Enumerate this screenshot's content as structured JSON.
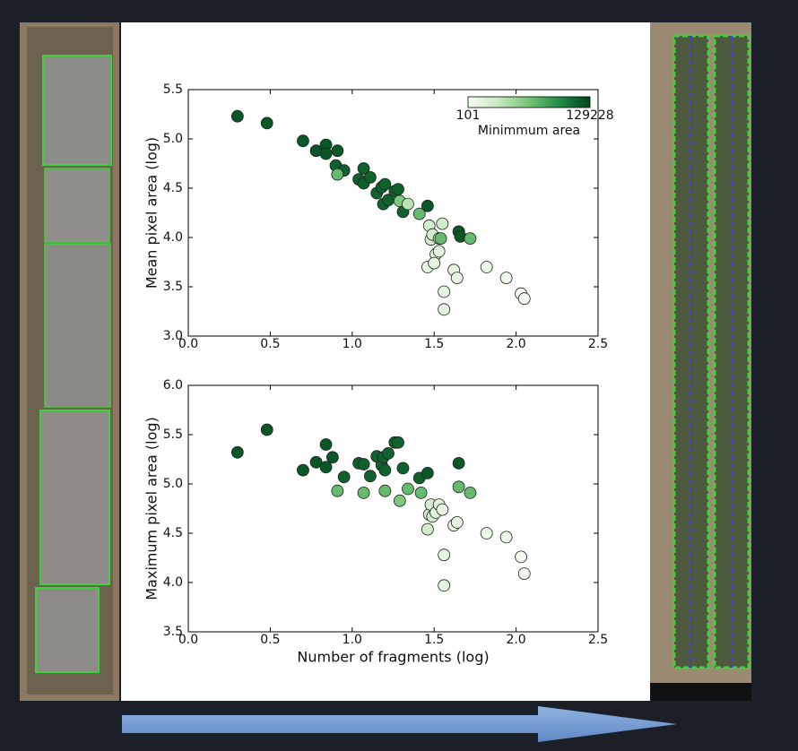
{
  "chart_data": [
    {
      "type": "scatter",
      "ylabel": "Mean pixel area (log)",
      "xlim": [
        0,
        2.5
      ],
      "ylim": [
        3.0,
        5.5
      ],
      "xticks": [
        {
          "value": 0,
          "label": "0.0"
        },
        0.5,
        {
          "value": 1,
          "label": "1.0"
        },
        1.5,
        {
          "value": 2,
          "label": "2.0"
        },
        2.5
      ],
      "yticks": [
        {
          "value": 3,
          "label": "3.0"
        },
        3.5,
        {
          "value": 4,
          "label": "4.0"
        },
        4.5,
        {
          "value": 5,
          "label": "5.0"
        },
        5.5
      ],
      "cmap": [
        "#f7fcf5",
        "#c7e9c0",
        "#74c476",
        "#238b45",
        "#00441b"
      ],
      "clog": true,
      "colorbar": {
        "label": "Minimmum area",
        "clim": [
          101,
          129228
        ]
      },
      "x": [
        0.3,
        0.48,
        0.7,
        0.78,
        0.84,
        0.84,
        0.91,
        0.9,
        0.95,
        0.91,
        1.04,
        1.07,
        1.07,
        1.11,
        1.15,
        1.18,
        1.2,
        1.19,
        1.22,
        1.26,
        1.28,
        1.29,
        1.31,
        1.34,
        1.41,
        1.46,
        1.47,
        1.48,
        1.49,
        1.53,
        1.54,
        1.55,
        1.51,
        1.53,
        1.46,
        1.5,
        1.56,
        1.56,
        1.62,
        1.64,
        1.65,
        1.66,
        1.72,
        1.82,
        1.94,
        2.03,
        2.05
      ],
      "y": [
        5.23,
        5.16,
        4.98,
        4.88,
        4.94,
        4.85,
        4.88,
        4.73,
        4.68,
        4.64,
        4.59,
        4.7,
        4.55,
        4.61,
        4.45,
        4.51,
        4.54,
        4.34,
        4.38,
        4.47,
        4.49,
        4.37,
        4.26,
        4.34,
        4.24,
        4.32,
        4.12,
        3.98,
        4.03,
        3.99,
        3.99,
        4.14,
        3.83,
        3.86,
        3.7,
        3.74,
        3.45,
        3.27,
        3.67,
        3.59,
        4.06,
        4.01,
        3.99,
        3.7,
        3.59,
        3.43,
        3.38
      ],
      "c": [
        80000,
        80000,
        80000,
        80000,
        80000,
        80000,
        80000,
        60000,
        60000,
        5000,
        60000,
        60000,
        60000,
        60000,
        60000,
        60000,
        60000,
        60000,
        60000,
        60000,
        60000,
        3000,
        60000,
        800,
        5000,
        80000,
        400,
        400,
        400,
        400,
        5000,
        400,
        250,
        250,
        200,
        200,
        200,
        200,
        200,
        200,
        80000,
        80000,
        5000,
        150,
        150,
        120,
        120
      ]
    },
    {
      "type": "scatter",
      "xlabel": "Number of fragments (log)",
      "ylabel": "Maximum pixel area (log)",
      "xlim": [
        0,
        2.5
      ],
      "ylim": [
        3.5,
        6.0
      ],
      "xticks": [
        {
          "value": 0,
          "label": "0.0"
        },
        0.5,
        {
          "value": 1,
          "label": "1.0"
        },
        1.5,
        {
          "value": 2,
          "label": "2.0"
        },
        2.5
      ],
      "yticks": [
        3.5,
        {
          "value": 4,
          "label": "4.0"
        },
        4.5,
        {
          "value": 5,
          "label": "5.0"
        },
        5.5,
        {
          "value": 6,
          "label": "6.0"
        }
      ],
      "cmap": [
        "#f7fcf5",
        "#c7e9c0",
        "#74c476",
        "#238b45",
        "#00441b"
      ],
      "clog": true,
      "clim": [
        101,
        129228
      ],
      "x": [
        0.3,
        0.48,
        0.7,
        0.78,
        0.84,
        0.84,
        0.88,
        0.91,
        0.95,
        1.04,
        1.07,
        1.07,
        1.11,
        1.15,
        1.18,
        1.19,
        1.2,
        1.22,
        1.2,
        1.26,
        1.28,
        1.31,
        1.29,
        1.34,
        1.41,
        1.46,
        1.42,
        1.46,
        1.47,
        1.48,
        1.49,
        1.51,
        1.53,
        1.55,
        1.56,
        1.56,
        1.62,
        1.64,
        1.65,
        1.65,
        1.72,
        1.82,
        1.94,
        2.03,
        2.05
      ],
      "y": [
        5.32,
        5.55,
        5.14,
        5.22,
        5.4,
        5.17,
        5.27,
        4.93,
        5.07,
        5.21,
        5.2,
        4.91,
        5.08,
        5.28,
        5.19,
        5.27,
        5.14,
        5.31,
        4.93,
        5.42,
        5.42,
        5.16,
        4.83,
        4.95,
        5.06,
        5.11,
        4.91,
        4.54,
        4.69,
        4.79,
        4.67,
        4.71,
        4.79,
        4.74,
        4.28,
        3.97,
        4.58,
        4.61,
        5.21,
        4.97,
        4.91,
        4.5,
        4.46,
        4.26,
        4.09
      ],
      "c": [
        80000,
        80000,
        80000,
        80000,
        80000,
        80000,
        80000,
        5000,
        60000,
        60000,
        60000,
        5000,
        60000,
        60000,
        60000,
        60000,
        60000,
        60000,
        5000,
        60000,
        60000,
        60000,
        3000,
        5000,
        60000,
        80000,
        5000,
        400,
        400,
        400,
        400,
        250,
        250,
        200,
        200,
        200,
        200,
        200,
        80000,
        5000,
        5000,
        150,
        150,
        120,
        120
      ]
    }
  ]
}
